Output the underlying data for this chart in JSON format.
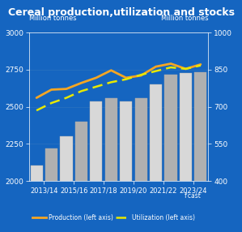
{
  "title": "Cereal production,utilization and stocks",
  "background_color": "#1565c0",
  "plot_bg_color": "#1565c0",
  "stocks_values": [
    462,
    530,
    580,
    640,
    720,
    735,
    720,
    735,
    790,
    830,
    835,
    840
  ],
  "production_values": [
    2560,
    2615,
    2620,
    2660,
    2695,
    2745,
    2695,
    2710,
    2770,
    2790,
    2755,
    2785
  ],
  "utilization_values": [
    2475,
    2525,
    2560,
    2605,
    2635,
    2665,
    2685,
    2715,
    2740,
    2765,
    2755,
    2778
  ],
  "x_positions": [
    0,
    1,
    2,
    3,
    4,
    5,
    6,
    7,
    8,
    9,
    10,
    11
  ],
  "x_tick_positions": [
    0.5,
    2.5,
    4.5,
    6.5,
    8.5,
    10.5
  ],
  "x_tick_labels": [
    "2013/14",
    "2015/16",
    "2017/18",
    "2019/20",
    "2021/22",
    "2023/24"
  ],
  "ylabel_left": "Million tonnes",
  "ylabel_right": "Million tonnes",
  "ylim_left": [
    2000,
    3000
  ],
  "ylim_right": [
    400,
    1000
  ],
  "yticks_left": [
    2000,
    2250,
    2500,
    2750,
    3000
  ],
  "yticks_right": [
    400,
    550,
    700,
    850,
    1000
  ],
  "bar_color_light": "#d8d8d8",
  "bar_color_dark": "#b0b0b0",
  "bar_edge_color": "#aaaaaa",
  "production_color": "#f5a623",
  "utilization_color": "#e8e800",
  "text_color": "white",
  "grid_color": "#3a7bbf",
  "fcst_label": "f'cast"
}
